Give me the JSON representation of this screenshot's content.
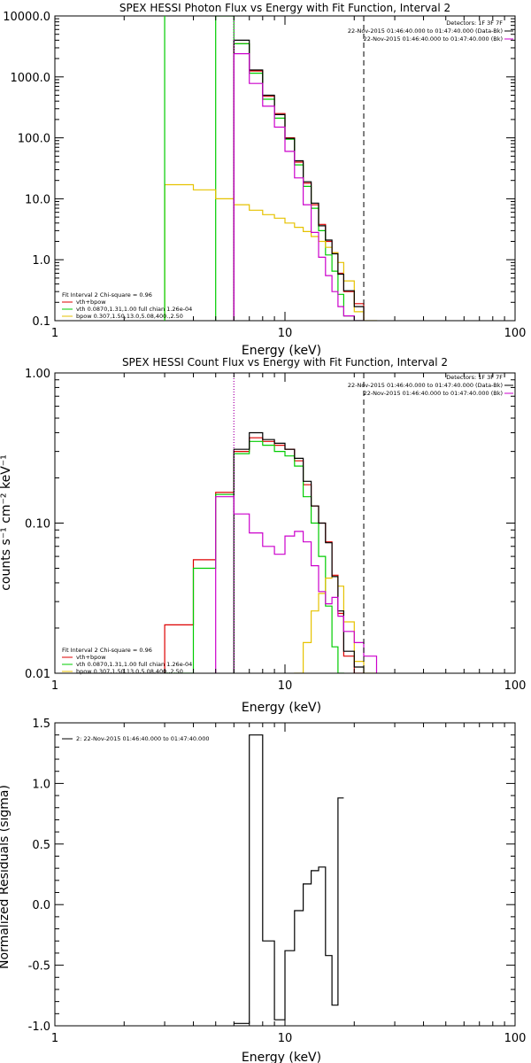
{
  "colors": {
    "total": "#000000",
    "fit": "#dd0000",
    "vth": "#00cc00",
    "bpow": "#e6c200",
    "bk": "#cc00cc",
    "data": "#000000"
  },
  "panels": [
    {
      "title": "SPEX HESSI Photon Flux vs Energy with Fit Function, Interval 2",
      "xlabel": "Energy (keV)",
      "ylabel": "",
      "info_lines": [
        "Detectors: 1F 3F 7F",
        "22-Nov-2015 01:46:40.000 to 01:47:40.000 (Data-Bk)",
        "22-Nov-2015 01:46:40.000 to 01:47:40.000 (Bk)"
      ],
      "legend_lines": [
        "Fit Interval 2   Chi-square = 0.96",
        "vth+bpow",
        "vth 0.0870,1.31,1.00  full chian 1.26e-04",
        "bpow 0.307,1.50,13.0,5.08,400.,2.50"
      ]
    },
    {
      "title": "SPEX HESSI Count Flux vs Energy with Fit Function, Interval 2",
      "xlabel": "Energy (keV)",
      "ylabel": "counts s⁻¹ cm⁻² keV⁻¹",
      "info_lines": [
        "Detectors: 1F 3F 7F",
        "22-Nov-2015 01:46:40.000 to 01:47:40.000 (Data-Bk)",
        "22-Nov-2015 01:46:40.000 to 01:47:40.000 (Bk)"
      ],
      "legend_lines": [
        "Fit Interval 2   Chi-square = 0.96",
        "vth+bpow",
        "vth 0.0870,1.31,1.00  full chian 1.26e-04",
        "bpow 0.307,1.50,13.0,5.08,400.,2.50"
      ]
    },
    {
      "title": "",
      "xlabel": "Energy (keV)",
      "ylabel": "Normalized Residuals (sigma)",
      "info_lines": [],
      "legend_lines": [
        "2: 22-Nov-2015 01:46:40.000 to 01:47:40.000"
      ]
    }
  ],
  "chart_data": [
    {
      "type": "line",
      "title": "SPEX HESSI Photon Flux vs Energy with Fit Function, Interval 2",
      "xlabel": "Energy (keV)",
      "ylabel": "",
      "x_scale": "log",
      "y_scale": "log",
      "xlim": [
        1,
        100
      ],
      "ylim": [
        0.1,
        10000
      ],
      "x_ticks": [
        1,
        10,
        100
      ],
      "x_tick_labels": [
        "1",
        "10",
        "100"
      ],
      "y_ticks": [
        0.1,
        1,
        10,
        100,
        1000,
        10000
      ],
      "y_tick_labels": [
        "0.1",
        "1.0",
        "10.0",
        "100.0",
        "1000.0",
        "10000.0"
      ],
      "energy_edges": [
        3,
        4,
        5,
        6,
        7,
        8,
        9,
        10,
        11,
        12,
        13,
        14,
        15,
        16,
        17,
        18,
        20,
        22,
        25
      ],
      "vlines": [
        {
          "x": 6.0,
          "style": "dotted",
          "color": "#000000"
        },
        {
          "x": 6.0,
          "style": "dotted",
          "color": "#cc00cc"
        },
        {
          "x": 22.0,
          "style": "dashed",
          "color": "#000000"
        }
      ],
      "series": [
        {
          "name": "vth+bpow",
          "color": "#dd0000",
          "values": [
            null,
            null,
            null,
            3500,
            1250,
            480,
            250,
            100,
            40,
            18,
            8.0,
            3.8,
            2.0,
            1.3,
            0.6,
            0.3,
            0.19,
            null
          ]
        },
        {
          "name": "vth",
          "color": "#00cc00",
          "values": [
            null,
            null,
            10000,
            3500,
            1150,
            430,
            210,
            95,
            36,
            16,
            7.0,
            3.0,
            1.2,
            0.65,
            0.27,
            0.12,
            0.1,
            null
          ]
        },
        {
          "name": "bpow",
          "color": "#e6c200",
          "values": [
            17,
            14,
            10,
            8.0,
            6.5,
            5.5,
            4.8,
            4.0,
            3.4,
            2.9,
            2.4,
            2.0,
            1.6,
            1.3,
            0.9,
            0.45,
            0.14,
            0.1
          ]
        },
        {
          "name": "",
          "color": "#000000",
          "values": [
            null,
            null,
            null,
            4000,
            1300,
            500,
            240,
            98,
            42,
            19,
            8.5,
            3.6,
            2.1,
            1.25,
            0.58,
            0.31,
            0.17,
            null
          ]
        },
        {
          "name": "",
          "color": "#cc00cc",
          "values": [
            null,
            null,
            null,
            2400,
            780,
            330,
            150,
            60,
            22,
            8.0,
            2.8,
            1.1,
            0.55,
            0.3,
            0.17,
            0.12,
            0.1,
            null
          ]
        }
      ]
    },
    {
      "type": "line",
      "title": "SPEX HESSI Count Flux vs Energy with Fit Function, Interval 2",
      "xlabel": "Energy (keV)",
      "ylabel": "counts s⁻¹ cm⁻² keV⁻¹",
      "x_scale": "log",
      "y_scale": "log",
      "xlim": [
        1,
        100
      ],
      "ylim": [
        0.01,
        1.0
      ],
      "x_ticks": [
        1,
        10,
        100
      ],
      "x_tick_labels": [
        "1",
        "10",
        "100"
      ],
      "y_ticks": [
        0.01,
        0.1,
        1.0
      ],
      "y_tick_labels": [
        "0.01",
        "0.10",
        "1.00"
      ],
      "energy_edges": [
        3,
        4,
        5,
        6,
        7,
        8,
        9,
        10,
        11,
        12,
        13,
        14,
        15,
        16,
        17,
        18,
        20,
        22,
        25
      ],
      "vlines": [
        {
          "x": 6.0,
          "style": "dotted",
          "color": "#000000"
        },
        {
          "x": 6.0,
          "style": "dotted",
          "color": "#cc00cc"
        },
        {
          "x": 22.0,
          "style": "dashed",
          "color": "#000000"
        }
      ],
      "series": [
        {
          "name": "vth+bpow",
          "color": "#dd0000",
          "values": [
            0.021,
            0.057,
            0.16,
            0.3,
            0.37,
            0.35,
            0.33,
            0.31,
            0.26,
            0.18,
            0.13,
            0.1,
            0.075,
            0.045,
            0.025,
            0.013,
            0.01,
            null
          ]
        },
        {
          "name": "vth",
          "color": "#00cc00",
          "values": [
            0.01,
            0.05,
            0.155,
            0.29,
            0.35,
            0.33,
            0.3,
            0.28,
            0.24,
            0.15,
            0.1,
            0.06,
            0.028,
            0.015,
            0.01,
            null,
            null,
            null
          ]
        },
        {
          "name": "bpow",
          "color": "#e6c200",
          "values": [
            null,
            null,
            null,
            null,
            null,
            null,
            null,
            null,
            0.01,
            0.016,
            0.026,
            0.034,
            0.043,
            0.044,
            0.038,
            0.022,
            0.012,
            0.01
          ]
        },
        {
          "name": "",
          "color": "#000000",
          "values": [
            null,
            null,
            null,
            0.31,
            0.4,
            0.36,
            0.34,
            0.31,
            0.27,
            0.19,
            0.13,
            0.1,
            0.074,
            0.044,
            0.026,
            0.014,
            0.011,
            null
          ]
        },
        {
          "name": "",
          "color": "#cc00cc",
          "values": [
            null,
            null,
            0.15,
            0.115,
            0.086,
            0.07,
            0.062,
            0.082,
            0.088,
            0.075,
            0.052,
            0.035,
            0.029,
            0.032,
            0.024,
            0.019,
            0.016,
            0.013
          ]
        }
      ]
    },
    {
      "type": "line",
      "title": "",
      "xlabel": "Energy (keV)",
      "ylabel": "Normalized Residuals (sigma)",
      "x_scale": "log",
      "y_scale": "linear",
      "xlim": [
        1,
        100
      ],
      "ylim": [
        -1.0,
        1.5
      ],
      "x_ticks": [
        1,
        10,
        100
      ],
      "x_tick_labels": [
        "1",
        "10",
        "100"
      ],
      "y_ticks": [
        -1.0,
        -0.5,
        0.0,
        0.5,
        1.0,
        1.5
      ],
      "y_tick_labels": [
        "-1.0",
        "-0.5",
        "0.0",
        "0.5",
        "1.0",
        "1.5"
      ],
      "energy_edges": [
        6,
        7,
        8,
        9,
        10,
        11,
        12,
        13,
        14,
        15,
        16,
        17,
        18,
        20,
        22
      ],
      "vlines": [],
      "series": [
        {
          "name": "2: 22-Nov-2015 01:46:40.000 to 01:47:40.000",
          "color": "#000000",
          "values": [
            -0.98,
            1.4,
            -0.3,
            -0.95,
            -0.38,
            -0.05,
            0.17,
            0.28,
            0.31,
            -0.42,
            -0.83,
            0.88,
            null,
            null
          ]
        }
      ]
    }
  ]
}
